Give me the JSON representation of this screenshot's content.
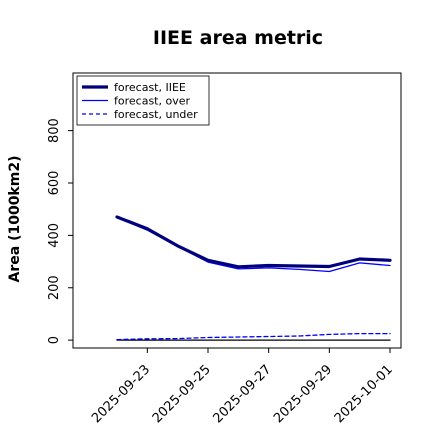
{
  "chart_data": {
    "type": "line",
    "title": "IIEE area metric",
    "xlabel": "",
    "ylabel": "Area (1000km2)",
    "x": [
      "2025-09-22",
      "2025-09-23",
      "2025-09-24",
      "2025-09-25",
      "2025-09-26",
      "2025-09-27",
      "2025-09-28",
      "2025-09-29",
      "2025-09-30",
      "2025-10-01"
    ],
    "xticks": [
      "2025-09-23",
      "2025-09-25",
      "2025-09-27",
      "2025-09-29",
      "2025-10-01"
    ],
    "xtick_colors": [
      "#2ca02c",
      "#000000",
      "#000000",
      "#000000",
      "#000000"
    ],
    "yticks": [
      0,
      200,
      400,
      600,
      800
    ],
    "ylim": [
      -30,
      1020
    ],
    "grid": false,
    "legend_position": "top-left",
    "series": [
      {
        "name": "forecast, IIEE",
        "color": "#00007f",
        "style": "solid",
        "width": "thick",
        "values": [
          470,
          425,
          360,
          305,
          280,
          285,
          283,
          281,
          310,
          305
        ]
      },
      {
        "name": "forecast, over",
        "color": "#0000ff",
        "style": "solid",
        "width": "thin",
        "values": [
          468,
          420,
          358,
          298,
          272,
          276,
          270,
          262,
          295,
          285
        ]
      },
      {
        "name": "forecast, under",
        "color": "#0000ff",
        "style": "dashed",
        "width": "thin",
        "values": [
          2,
          5,
          6,
          10,
          12,
          14,
          16,
          22,
          25,
          25
        ]
      },
      {
        "name": "",
        "color": "#000000",
        "style": "solid",
        "width": "thin",
        "values": [
          0,
          0,
          0,
          0,
          0,
          0,
          0,
          0,
          0,
          0
        ]
      }
    ]
  }
}
